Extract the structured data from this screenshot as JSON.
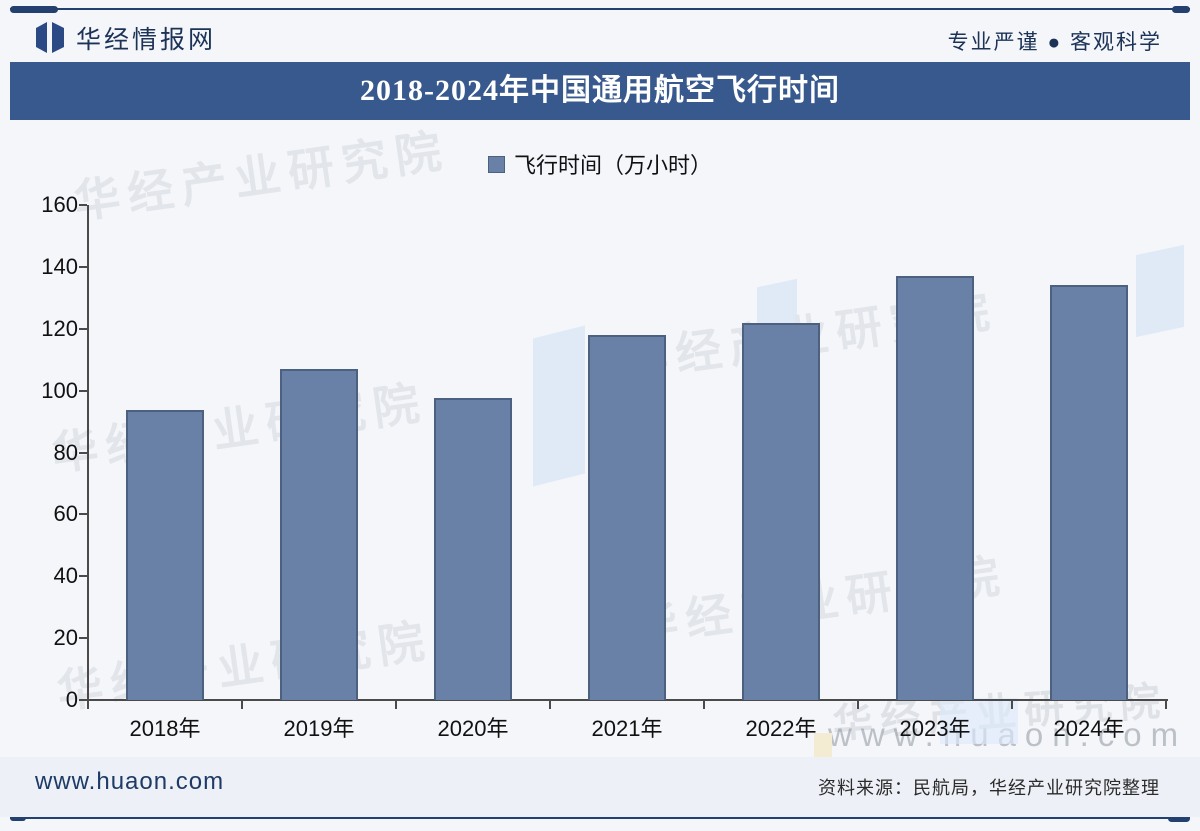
{
  "header": {
    "brand": "华经情报网",
    "tagline": "专业严谨 ● 客观科学"
  },
  "title_bar": {
    "title": "2018-2024年中国通用航空飞行时间"
  },
  "legend": {
    "label": "飞行时间（万小时）"
  },
  "chart_data": {
    "type": "bar",
    "title": "2018-2024年中国通用航空飞行时间",
    "categories": [
      "2018年",
      "2019年",
      "2020年",
      "2021年",
      "2022年",
      "2023年",
      "2024年"
    ],
    "series": [
      {
        "name": "飞行时间（万小时）",
        "values": [
          93.7,
          107,
          97.5,
          118,
          122,
          137,
          134
        ]
      }
    ],
    "xlabel": "",
    "ylabel": "",
    "ylim": [
      0,
      160
    ],
    "ytick_step": 20,
    "grid": false,
    "legend_position": "top",
    "bar_color": "#6981a7",
    "bar_border_color": "#4c6080"
  },
  "watermarks": {
    "cn": "华经产业研究院",
    "url": "www.huaon.com"
  },
  "footer": {
    "site": "www.huaon.com",
    "source": "资料来源：民航局，华经产业研究院整理"
  },
  "colors": {
    "accent": "#38598e",
    "rule": "#24406e",
    "bar": "#6981a7"
  }
}
